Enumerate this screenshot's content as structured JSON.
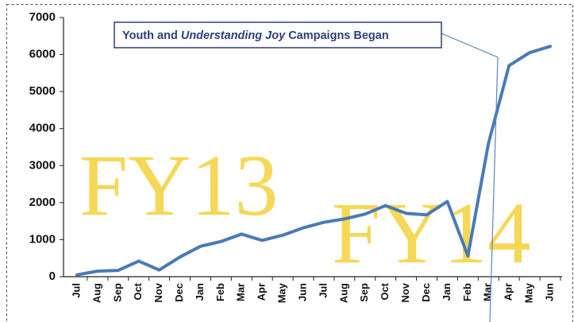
{
  "chart_data": {
    "type": "line",
    "annotation": {
      "before": "Youth and",
      "emphasis": "Understanding Joy",
      "after": "Campaigns Began"
    },
    "watermarks": [
      "FY13",
      "FY14"
    ],
    "categories": [
      "Jul",
      "Aug",
      "Sep",
      "Oct",
      "Nov",
      "Dec",
      "Jan",
      "Feb",
      "Mar",
      "Apr",
      "May",
      "Jun",
      "Jul",
      "Aug",
      "Sep",
      "Oct",
      "Nov",
      "Dec",
      "Jan",
      "Feb",
      "Mar",
      "Apr",
      "May",
      "Jun"
    ],
    "series": [
      {
        "name": null,
        "color": "#4a7ab6",
        "values": [
          50,
          150,
          170,
          420,
          180,
          530,
          820,
          950,
          1150,
          980,
          1120,
          1320,
          1470,
          1560,
          1690,
          1920,
          1710,
          1670,
          2030,
          560,
          3600,
          5700,
          6050,
          6220
        ]
      }
    ],
    "ylim": [
      0,
      7000
    ],
    "yticks": [
      0,
      1000,
      2000,
      3000,
      4000,
      5000,
      6000,
      7000
    ]
  }
}
